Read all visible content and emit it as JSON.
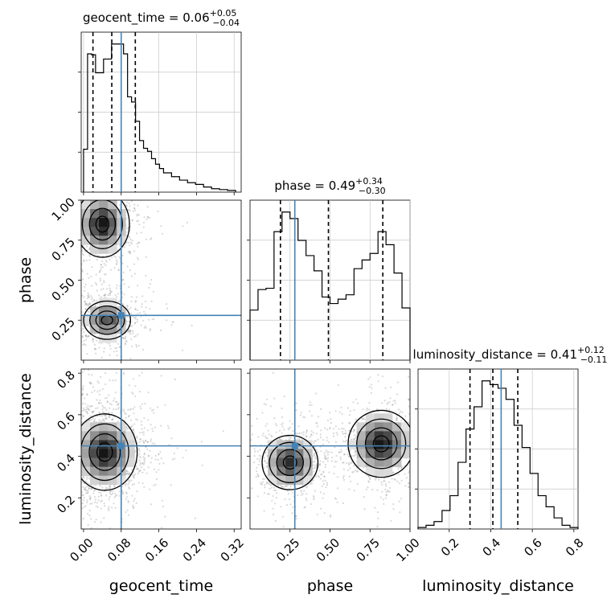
{
  "chart_data": {
    "type": "corner",
    "parameters": [
      "geocent_time",
      "phase",
      "luminosity_distance"
    ],
    "truths": [
      0.08,
      0.28,
      0.45
    ],
    "titles": [
      {
        "param": "geocent_time",
        "median": "0.06",
        "plus": "+0.05",
        "minus": "−0.04"
      },
      {
        "param": "phase",
        "median": "0.49",
        "plus": "+0.34",
        "minus": "−0.30"
      },
      {
        "param": "luminosity_distance",
        "median": "0.41",
        "plus": "+0.12",
        "minus": "−0.11"
      }
    ],
    "ranges": {
      "geocent_time": [
        -0.005,
        0.335
      ],
      "phase": [
        0.0,
        1.0
      ],
      "luminosity_distance": [
        0.05,
        0.82
      ]
    },
    "quantiles": {
      "geocent_time": [
        0.02,
        0.06,
        0.11
      ],
      "phase": [
        0.19,
        0.49,
        0.83
      ],
      "luminosity_distance": [
        0.3,
        0.41,
        0.53
      ]
    },
    "ticks": {
      "geocent_time": [
        "0.00",
        "0.08",
        "0.16",
        "0.24",
        "0.32"
      ],
      "phase": [
        "0.25",
        "0.50",
        "0.75",
        "1.00"
      ],
      "luminosity_distance": [
        "0.2",
        "0.4",
        "0.6",
        "0.8"
      ]
    },
    "tick_values": {
      "geocent_time": [
        0.0,
        0.08,
        0.16,
        0.24,
        0.32
      ],
      "phase": [
        0.25,
        0.5,
        0.75,
        1.0
      ],
      "luminosity_distance": [
        0.2,
        0.4,
        0.6,
        0.8
      ]
    },
    "histograms": {
      "geocent_time": {
        "bin_edges": [
          0.0,
          0.0085,
          0.017,
          0.0255,
          0.034,
          0.0425,
          0.051,
          0.0595,
          0.068,
          0.0765,
          0.085,
          0.0935,
          0.102,
          0.1105,
          0.119,
          0.1275,
          0.136,
          0.1445,
          0.153,
          0.1615,
          0.17,
          0.187,
          0.204,
          0.221,
          0.238,
          0.255,
          0.272,
          0.289,
          0.306,
          0.323
        ],
        "counts": [
          100,
          322,
          320,
          278,
          278,
          310,
          310,
          345,
          345,
          345,
          322,
          222,
          210,
          165,
          120,
          102,
          95,
          78,
          65,
          55,
          45,
          36,
          28,
          22,
          18,
          12,
          8,
          6,
          4
        ]
      },
      "phase": {
        "bin_edges": [
          0.0,
          0.05,
          0.1,
          0.15,
          0.2,
          0.25,
          0.3,
          0.35,
          0.4,
          0.45,
          0.5,
          0.55,
          0.6,
          0.65,
          0.7,
          0.75,
          0.8,
          0.85,
          0.9,
          0.95,
          1.0
        ],
        "counts": [
          115,
          162,
          165,
          295,
          340,
          325,
          275,
          240,
          205,
          145,
          130,
          140,
          150,
          210,
          230,
          245,
          295,
          265,
          200,
          120
        ]
      },
      "luminosity_distance": {
        "bin_edges": [
          0.05,
          0.0885,
          0.127,
          0.1655,
          0.204,
          0.2425,
          0.281,
          0.3195,
          0.358,
          0.3965,
          0.435,
          0.4735,
          0.512,
          0.5505,
          0.589,
          0.6275,
          0.666,
          0.7045,
          0.743,
          0.7815,
          0.82
        ],
        "counts": [
          2,
          5,
          10,
          25,
          45,
          90,
          135,
          165,
          200,
          195,
          190,
          175,
          140,
          110,
          75,
          45,
          30,
          15,
          5,
          2
        ]
      }
    },
    "density_modes": {
      "phase_vs_geocent_time": [
        {
          "x": 0.04,
          "y": 0.85,
          "sx": 0.025,
          "sy": 0.09,
          "w": 1.0
        },
        {
          "x": 0.05,
          "y": 0.25,
          "sx": 0.025,
          "sy": 0.06,
          "w": 0.75
        }
      ],
      "luminosity_distance_vs_geocent_time": [
        {
          "x": 0.045,
          "y": 0.42,
          "sx": 0.03,
          "sy": 0.08,
          "w": 1.0
        }
      ],
      "luminosity_distance_vs_phase": [
        {
          "x": 0.25,
          "y": 0.37,
          "sx": 0.08,
          "sy": 0.06,
          "w": 0.9
        },
        {
          "x": 0.82,
          "y": 0.46,
          "sx": 0.09,
          "sy": 0.07,
          "w": 1.0
        }
      ]
    }
  }
}
